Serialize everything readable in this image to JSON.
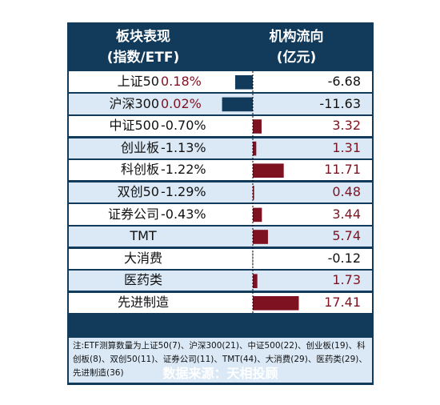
{
  "header": {
    "left_line1": "板块表现",
    "left_line2": "(指数/ETF)",
    "right_line1": "机构流向",
    "right_line2": "(亿元)"
  },
  "rows": [
    {
      "name": "上证50",
      "perf": "0.18%",
      "flow": "-6.68"
    },
    {
      "name": "沪深300",
      "perf": "0.02%",
      "flow": "-11.63"
    },
    {
      "name": "中证500",
      "perf": "-0.70%",
      "flow": "3.32"
    },
    {
      "name": "创业板",
      "perf": "-1.13%",
      "flow": "1.31"
    },
    {
      "name": "科创板",
      "perf": "-1.22%",
      "flow": "11.71"
    },
    {
      "name": "双创50",
      "perf": "-1.29%",
      "flow": "0.48"
    },
    {
      "name": "证券公司",
      "perf": "-0.43%",
      "flow": "3.44"
    },
    {
      "name": "TMT",
      "perf": "",
      "flow": "5.74"
    },
    {
      "name": "大消费",
      "perf": "",
      "flow": "-0.12"
    },
    {
      "name": "医药类",
      "perf": "",
      "flow": "1.73"
    },
    {
      "name": "先进制造",
      "perf": "",
      "flow": "17.41"
    }
  ],
  "note": "注:ETF测算数量为上证50(7)、沪深300(21)、中证500(22)、创业板(19)、科创板(8)、双创50(11)、证券公司(11)、TMT(44)、大消费(29)、医药类(29)、先进制造(36)",
  "source": "数据来源：天相投顾",
  "colors": {
    "frame": "#123a5a",
    "row_alt": "#dbe9f6",
    "positive": "#7f1221",
    "negative_bar": "#123a5a",
    "zero_line": "#000000"
  },
  "chart_data": {
    "type": "bar",
    "orientation": "horizontal",
    "categories": [
      "上证50",
      "沪深300",
      "中证500",
      "创业板",
      "科创板",
      "双创50",
      "证券公司",
      "TMT",
      "大消费",
      "医药类",
      "先进制造"
    ],
    "series": [
      {
        "name": "机构流向",
        "values": [
          -6.68,
          -11.63,
          3.32,
          1.31,
          11.71,
          0.48,
          3.44,
          5.74,
          -0.12,
          1.73,
          17.41
        ]
      }
    ],
    "index_performance_pct": [
      0.18,
      0.02,
      -0.7,
      -1.13,
      -1.22,
      -1.29,
      -0.43,
      null,
      null,
      null,
      null
    ],
    "xlabel": "",
    "ylabel": "(亿元)",
    "grid": false,
    "zero_line": "dashed"
  }
}
